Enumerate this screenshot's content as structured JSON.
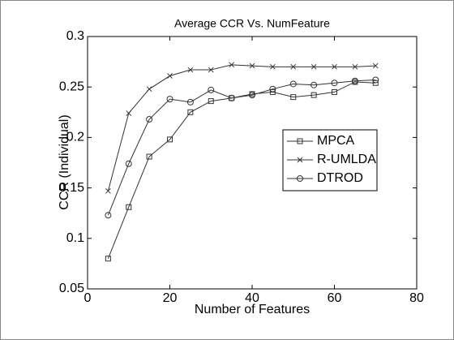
{
  "chart_data": {
    "type": "line",
    "title": "Average CCR Vs. NumFeature",
    "xlabel": "Number of Features",
    "ylabel": "CCR (Individual)",
    "x": [
      5,
      10,
      15,
      20,
      25,
      30,
      35,
      40,
      45,
      50,
      55,
      60,
      65,
      70
    ],
    "series": [
      {
        "name": "MPCA",
        "color": "#333333",
        "marker": "square",
        "values": [
          0.08,
          0.131,
          0.181,
          0.198,
          0.225,
          0.236,
          0.239,
          0.243,
          0.245,
          0.24,
          0.242,
          0.245,
          0.255,
          0.254
        ]
      },
      {
        "name": "R-UMLDA",
        "color": "#333333",
        "marker": "x",
        "values": [
          0.147,
          0.224,
          0.248,
          0.261,
          0.267,
          0.267,
          0.272,
          0.271,
          0.27,
          0.27,
          0.27,
          0.27,
          0.27,
          0.271
        ]
      },
      {
        "name": "DTROD",
        "color": "#333333",
        "marker": "circle",
        "values": [
          0.123,
          0.174,
          0.218,
          0.238,
          0.235,
          0.247,
          0.239,
          0.242,
          0.248,
          0.253,
          0.252,
          0.254,
          0.256,
          0.257
        ]
      }
    ],
    "xlim": [
      0,
      80
    ],
    "xticks": [
      0,
      20,
      40,
      60,
      80
    ],
    "ylim": [
      0.05,
      0.3
    ],
    "yticks": [
      0.05,
      0.1,
      0.15,
      0.2,
      0.25,
      0.3
    ],
    "grid": false,
    "legend": "east"
  }
}
